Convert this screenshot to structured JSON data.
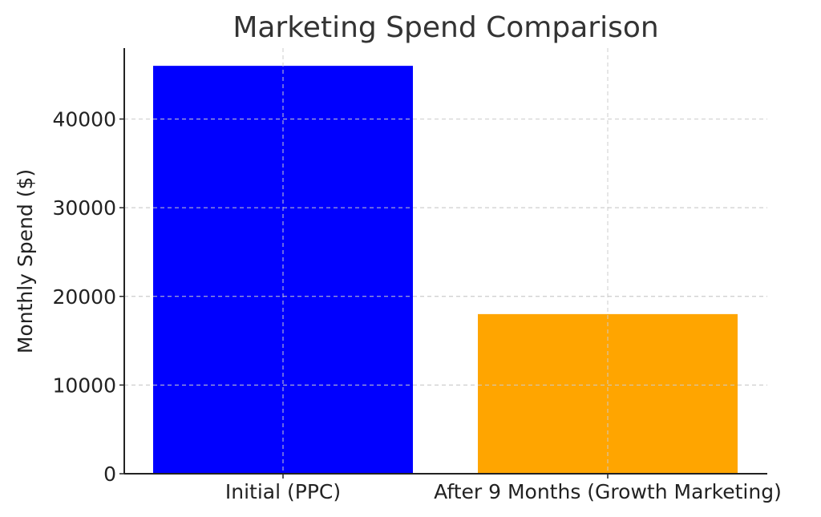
{
  "chart_data": {
    "type": "bar",
    "title": "Marketing Spend Comparison",
    "xlabel": "",
    "ylabel": "Monthly Spend ($)",
    "categories": [
      "Initial (PPC)",
      "After 9 Months (Growth Marketing)"
    ],
    "values": [
      46000,
      18000
    ],
    "colors": [
      "#0000ff",
      "#ffa500"
    ],
    "ylim": [
      0,
      48000
    ],
    "yticks": [
      0,
      10000,
      20000,
      30000,
      40000
    ],
    "ytick_labels": [
      "0",
      "10000",
      "20000",
      "30000",
      "40000"
    ],
    "grid": true
  }
}
